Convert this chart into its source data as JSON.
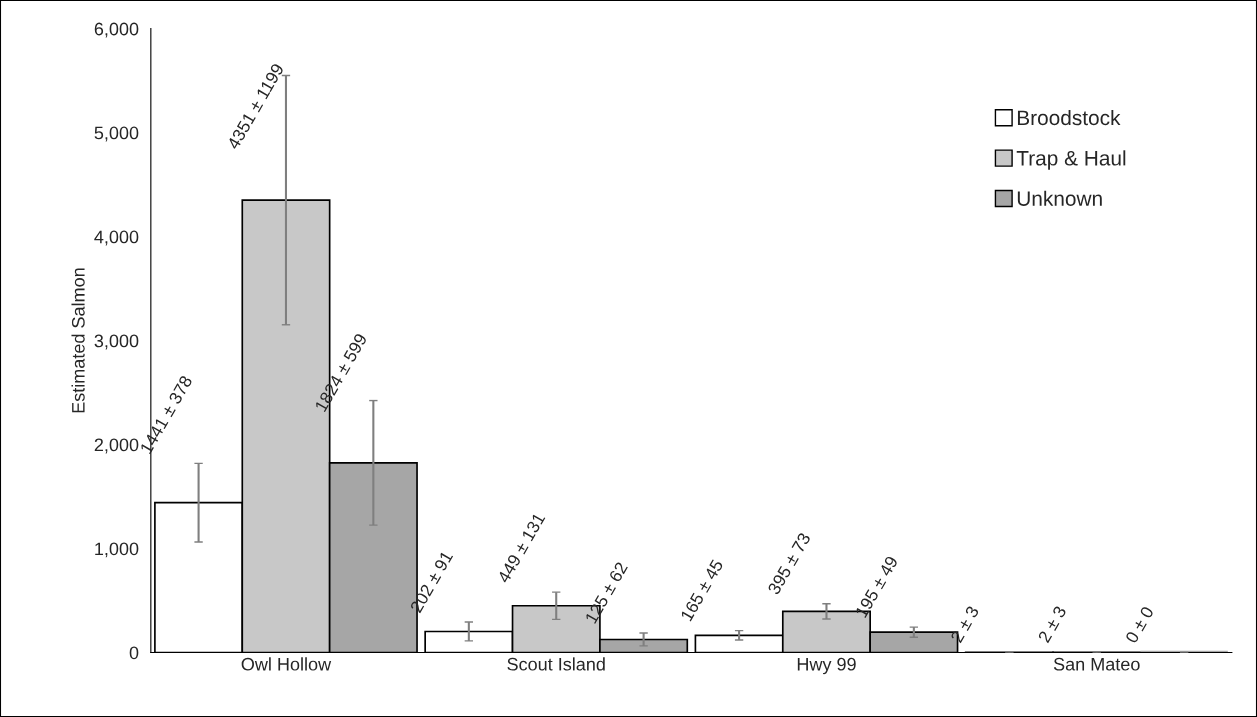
{
  "chart_data": {
    "type": "bar",
    "ylabel": "Estimated Salmon",
    "categories": [
      "Owl Hollow",
      "Scout Island",
      "Hwy 99",
      "San Mateo"
    ],
    "series": [
      {
        "name": "Broodstock",
        "color": "#ffffff",
        "values": [
          1441,
          202,
          165,
          2
        ],
        "errors": [
          378,
          91,
          45,
          3
        ],
        "value_labels": [
          "1441 ± 378",
          "202 ± 91",
          "165 ± 45",
          "2 ± 3"
        ]
      },
      {
        "name": "Trap & Haul",
        "color": "#c8c8c8",
        "values": [
          4351,
          449,
          395,
          2
        ],
        "errors": [
          1199,
          131,
          73,
          3
        ],
        "value_labels": [
          "4351 ± 1199",
          "449 ± 131",
          "395 ± 73",
          "2 ± 3"
        ]
      },
      {
        "name": "Unknown",
        "color": "#a6a6a6",
        "values": [
          1824,
          125,
          195,
          0
        ],
        "errors": [
          599,
          62,
          49,
          0
        ],
        "value_labels": [
          "1824 ± 599",
          "125 ± 62",
          "195 ± 49",
          "0 ± 0"
        ]
      }
    ],
    "ylim": [
      0,
      6000
    ],
    "yticks": [
      {
        "value": 0,
        "label": "0"
      },
      {
        "value": 1000,
        "label": "1,000"
      },
      {
        "value": 2000,
        "label": "2,000"
      },
      {
        "value": 3000,
        "label": "3,000"
      },
      {
        "value": 4000,
        "label": "4,000"
      },
      {
        "value": 5000,
        "label": "5,000"
      },
      {
        "value": 6000,
        "label": "6,000"
      }
    ],
    "grid": false,
    "legend": "top right"
  }
}
